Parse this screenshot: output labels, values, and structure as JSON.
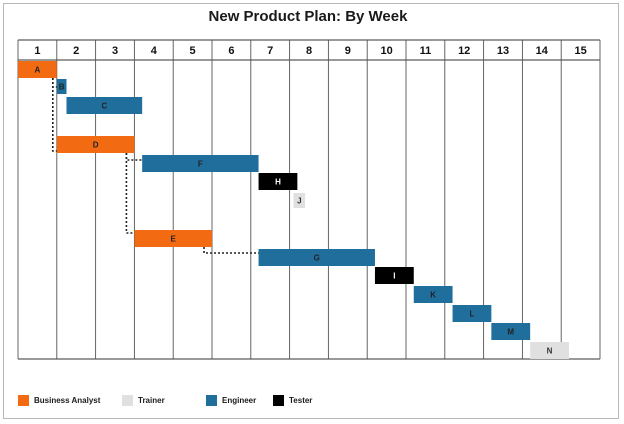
{
  "chart_data": {
    "type": "gantt",
    "title": "New Product Plan: By Week",
    "weeks": [
      "1",
      "2",
      "3",
      "4",
      "5",
      "6",
      "7",
      "8",
      "9",
      "10",
      "11",
      "12",
      "13",
      "14",
      "15"
    ],
    "roles": [
      {
        "name": "Business Analyst",
        "color": "#f26a12"
      },
      {
        "name": "Trainer",
        "color": "#e0e0e0"
      },
      {
        "name": "Engineer",
        "color": "#1f6e9c"
      },
      {
        "name": "Tester",
        "color": "#000000"
      }
    ],
    "tasks": [
      {
        "label": "A",
        "role": "Business Analyst",
        "start": 0,
        "end": 1
      },
      {
        "label": "B",
        "role": "Engineer",
        "start": 1,
        "end": 1.25
      },
      {
        "label": "C",
        "role": "Engineer",
        "start": 1.25,
        "end": 3.2
      },
      {
        "label": "D",
        "role": "Business Analyst",
        "start": 1,
        "end": 3
      },
      {
        "label": "F",
        "role": "Engineer",
        "start": 3.2,
        "end": 6.2
      },
      {
        "label": "H",
        "role": "Tester",
        "start": 6.2,
        "end": 7.2
      },
      {
        "label": "J",
        "role": "Trainer",
        "start": 7.1,
        "end": 7.4
      },
      {
        "label": "E",
        "role": "Business Analyst",
        "start": 3,
        "end": 5
      },
      {
        "label": "G",
        "role": "Engineer",
        "start": 6.2,
        "end": 9.2
      },
      {
        "label": "I",
        "role": "Tester",
        "start": 9.2,
        "end": 10.2
      },
      {
        "label": "K",
        "role": "Engineer",
        "start": 10.2,
        "end": 11.2
      },
      {
        "label": "L",
        "role": "Engineer",
        "start": 11.2,
        "end": 12.2
      },
      {
        "label": "M",
        "role": "Engineer",
        "start": 12.2,
        "end": 13.2
      },
      {
        "label": "N",
        "role": "Trainer",
        "start": 13.2,
        "end": 14.2
      }
    ],
    "dependencies": [
      {
        "from": "A",
        "to": "B"
      },
      {
        "from": "A",
        "to": "D"
      },
      {
        "from": "D",
        "to": "F"
      },
      {
        "from": "D",
        "to": "E"
      },
      {
        "from": "E",
        "to": "G"
      }
    ]
  }
}
